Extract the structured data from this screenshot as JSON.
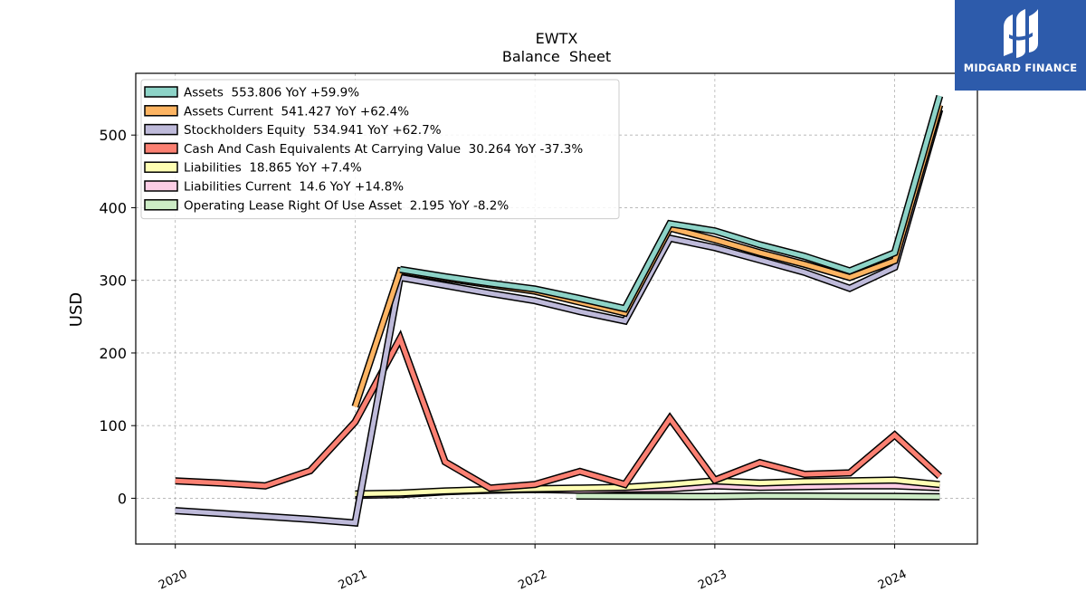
{
  "brand": {
    "name": "MIDGARD FINANCE",
    "color": "#2d5bab",
    "icon": "midgard-logo-icon"
  },
  "chart_data": {
    "type": "line",
    "title": "EWTX",
    "subtitle": "Balance  Sheet",
    "ylabel": "USD",
    "xlabel": "",
    "xlim": [
      2019.78,
      2024.46
    ],
    "ylim": [
      -63,
      585
    ],
    "yticks": [
      0,
      100,
      200,
      300,
      400,
      500
    ],
    "xticks": [
      2020,
      2021,
      2022,
      2023,
      2024
    ],
    "grid": true,
    "legend_position": "top-left",
    "series": [
      {
        "name": "Operating Lease Right Of Use Asset",
        "legend": "Operating Lease Right Of Use Asset  2.195 YoY -8.2%",
        "color": "#ccebc5",
        "x": [
          2022.23,
          2022.5,
          2022.75,
          2023.0,
          2023.25,
          2023.5,
          2023.75,
          2024.0,
          2024.25
        ],
        "y": [
          3,
          2.8,
          2.6,
          2.4,
          3.2,
          3.0,
          2.8,
          2.6,
          2.195
        ]
      },
      {
        "name": "Liabilities Current",
        "legend": "Liabilities Current  14.6 YoY +14.8%",
        "color": "#fccde5",
        "x": [
          2021.0,
          2021.25,
          2021.5,
          2021.75,
          2022.0,
          2022.25,
          2022.5,
          2022.75,
          2023.0,
          2023.25,
          2023.5,
          2023.75,
          2024.0,
          2024.25
        ],
        "y": [
          4,
          5,
          9,
          11,
          12,
          11,
          12.5,
          13,
          17,
          15,
          16,
          17,
          17,
          14.6
        ]
      },
      {
        "name": "Liabilities",
        "legend": "Liabilities  18.865 YoY +7.4%",
        "color": "#ffffb3",
        "x": [
          2021.0,
          2021.25,
          2021.5,
          2021.75,
          2022.0,
          2022.25,
          2022.5,
          2022.75,
          2023.0,
          2023.25,
          2023.5,
          2023.75,
          2024.0,
          2024.25
        ],
        "y": [
          6,
          7,
          10,
          12,
          13,
          14,
          15,
          19,
          24,
          21,
          23,
          24,
          25,
          18.865
        ]
      },
      {
        "name": "Cash And Cash Equivalents At Carrying Value",
        "legend": "Cash And Cash Equivalents At Carrying Value  30.264 YoY -37.3%",
        "color": "#fb8072",
        "x": [
          2020.0,
          2020.25,
          2020.5,
          2020.75,
          2021.0,
          2021.25,
          2021.5,
          2021.75,
          2022.0,
          2022.25,
          2022.5,
          2022.75,
          2023.0,
          2023.25,
          2023.5,
          2023.75,
          2024.0,
          2024.25
        ],
        "y": [
          24,
          21,
          17,
          38,
          105,
          220,
          50,
          14,
          19,
          37,
          19,
          110,
          25,
          49,
          33,
          35,
          87,
          30.264
        ]
      },
      {
        "name": "Stockholders Equity",
        "legend": "Stockholders Equity  534.941 YoY +62.7%",
        "color": "#bebada",
        "x": [
          2020.0,
          2020.25,
          2020.5,
          2020.75,
          2021.0,
          2021.25,
          2021.5,
          2021.75,
          2022.0,
          2022.25,
          2022.5,
          2022.75,
          2023.0,
          2023.25,
          2023.5,
          2023.75,
          2024.0,
          2024.25
        ],
        "y": [
          -17,
          -21,
          -25,
          -29,
          -34,
          304,
          293,
          282,
          272,
          257,
          244,
          358,
          345,
          328,
          311,
          289,
          318,
          534.941
        ]
      },
      {
        "name": "Assets Current",
        "legend": "Assets Current  541.427 YoY +62.4%",
        "color": "#fdb462",
        "x": [
          2021.0,
          2021.25,
          2021.5,
          2021.75,
          2022.0,
          2022.25,
          2022.5,
          2022.75,
          2023.0,
          2023.25,
          2023.5,
          2023.75,
          2024.0,
          2024.25
        ],
        "y": [
          126,
          313,
          303,
          294,
          285,
          270,
          255,
          372,
          356,
          338,
          322,
          304,
          327,
          541.427
        ]
      },
      {
        "name": "Assets",
        "legend": "Assets  553.806 YoY +59.9%",
        "color": "#8dd3c7",
        "x": [
          2021.25,
          2021.5,
          2021.75,
          2022.0,
          2022.25,
          2022.5,
          2022.75,
          2023.0,
          2023.25,
          2023.5,
          2023.75,
          2024.0,
          2024.25
        ],
        "y": [
          315,
          305,
          296,
          288,
          275,
          261,
          378,
          368,
          349,
          333,
          313,
          338,
          553.806
        ]
      }
    ]
  }
}
